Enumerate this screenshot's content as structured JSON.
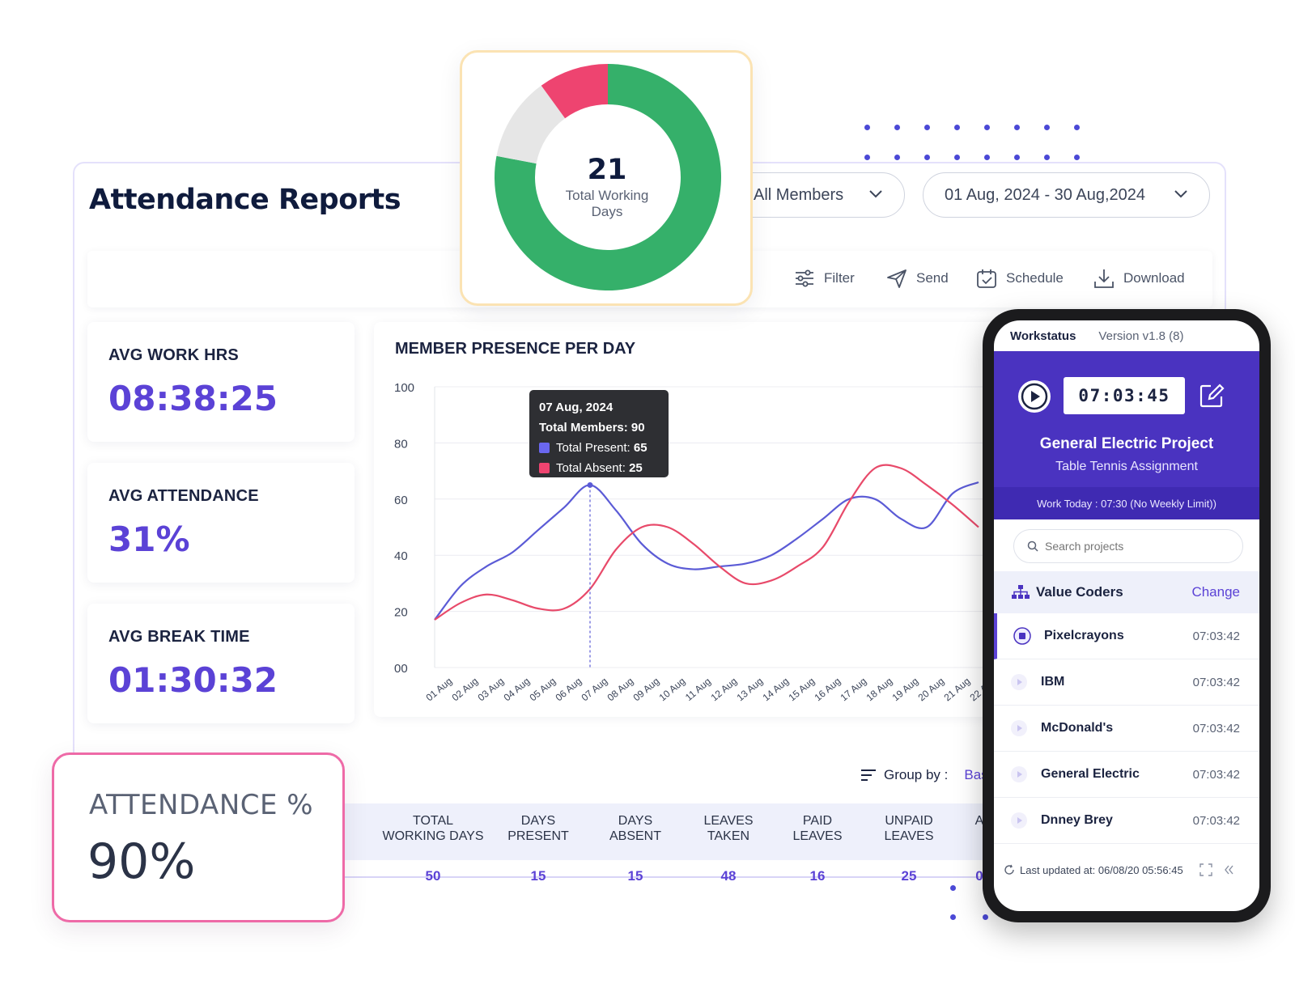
{
  "report": {
    "title": "Attendance Reports",
    "member_filter": "All Members",
    "date_range": "01 Aug, 2024 - 30 Aug,2024",
    "toolbar": {
      "filter": "Filter",
      "send": "Send",
      "schedule": "Schedule",
      "download": "Download"
    }
  },
  "stats": [
    {
      "label": "AVG WORK HRS",
      "value": "08:38:25"
    },
    {
      "label": "AVG ATTENDANCE",
      "value": "31%"
    },
    {
      "label": "AVG BREAK TIME",
      "value": "01:30:32"
    }
  ],
  "donut": {
    "value": "21",
    "label": "Total Working Days",
    "segments": [
      {
        "share": 0.78,
        "color": "#35b06a"
      },
      {
        "share": 0.12,
        "color": "#e6e6e6"
      },
      {
        "share": 0.1,
        "color": "#ee4470"
      }
    ]
  },
  "attendance_card": {
    "label": "ATTENDANCE %",
    "value": "90%"
  },
  "chart_data": {
    "type": "line",
    "title": "MEMBER PRESENCE PER DAY",
    "ylim": [
      0,
      100
    ],
    "yticks": [
      "00",
      "20",
      "40",
      "60",
      "80",
      "100"
    ],
    "grid": true,
    "x": [
      "01 Aug",
      "02 Aug",
      "03 Aug",
      "04 Aug",
      "05 Aug",
      "06 Aug",
      "07 Aug",
      "08 Aug",
      "09 Aug",
      "10 Aug",
      "11 Aug",
      "12 Aug",
      "13 Aug",
      "14 Aug",
      "15 Aug",
      "16 Aug",
      "17 Aug",
      "18 Aug",
      "19 Aug",
      "20 Aug",
      "21 Aug",
      "22 Aug"
    ],
    "series": [
      {
        "color": "#5b5bd6",
        "values": [
          17,
          29,
          36,
          41,
          49,
          57,
          65,
          56,
          44,
          37,
          35,
          36,
          37,
          40,
          46,
          53,
          60,
          60,
          53,
          50,
          62,
          66
        ]
      },
      {
        "color": "#e84a6a",
        "values": [
          17,
          23,
          26,
          24,
          21,
          21,
          28,
          42,
          50,
          50,
          44,
          36,
          30,
          31,
          36,
          43,
          59,
          71,
          71,
          65,
          58,
          50
        ]
      }
    ],
    "tooltip": {
      "date": "07 Aug, 2024",
      "members_label": "Total Members:",
      "members": "90",
      "present_label": "Total Present:",
      "present": "65",
      "absent_label": "Total Absent:",
      "absent": "25"
    }
  },
  "group_by": {
    "label": "Group by :",
    "value": "Bas"
  },
  "table": {
    "headers": [
      {
        "line1": "TOTAL",
        "line2": "WORKING DAYS"
      },
      {
        "line1": "DAYS",
        "line2": "PRESENT"
      },
      {
        "line1": "DAYS",
        "line2": "ABSENT"
      },
      {
        "line1": "LEAVES",
        "line2": "TAKEN"
      },
      {
        "line1": "PAID",
        "line2": "LEAVES"
      },
      {
        "line1": "UNPAID",
        "line2": "LEAVES"
      },
      {
        "line1": "A",
        "line2": ""
      }
    ],
    "row": [
      "50",
      "15",
      "15",
      "48",
      "16",
      "25",
      "0"
    ]
  },
  "phone": {
    "app_name": "Workstatus",
    "version": "Version v1.8 (8)",
    "timer": "07:03:45",
    "project": "General Electric Project",
    "task": "Table Tennis Assignment",
    "work_today": "Work Today : 07:30 (No Weekly Limit))",
    "search_placeholder": "Search projects",
    "org_name": "Value Coders",
    "change_label": "Change",
    "projects": [
      {
        "name": "Pixelcrayons",
        "time": "07:03:42"
      },
      {
        "name": "IBM",
        "time": "07:03:42"
      },
      {
        "name": "McDonald's",
        "time": "07:03:42"
      },
      {
        "name": "General Electric",
        "time": "07:03:42"
      },
      {
        "name": "Dnney Brey",
        "time": "07:03:42"
      }
    ],
    "last_updated": "Last updated at: 06/08/20  05:56:45"
  }
}
